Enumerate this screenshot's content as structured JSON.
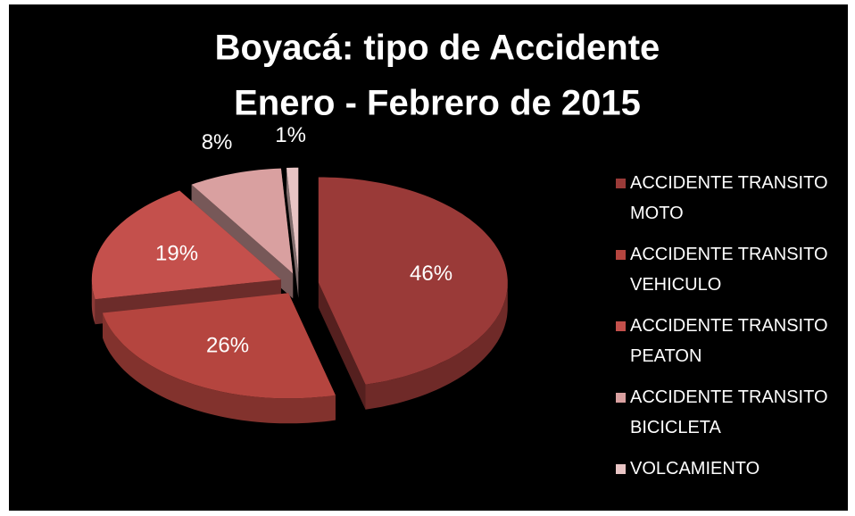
{
  "chart_data": {
    "type": "pie",
    "title": "Boyacá: tipo de Accidente",
    "subtitle": "Enero - Febrero de 2015",
    "categories": [
      "ACCIDENTE TRANSITO MOTO",
      "ACCIDENTE TRANSITO VEHICULO",
      "ACCIDENTE TRANSITO PEATON",
      "ACCIDENTE TRANSITO BICICLETA",
      "VOLCAMIENTO"
    ],
    "values": [
      46,
      26,
      19,
      8,
      1
    ],
    "value_labels": [
      "46%",
      "26%",
      "19%",
      "8%",
      "1%"
    ],
    "colors": [
      "#9a3a38",
      "#b5453f",
      "#c4504c",
      "#d9a0a0",
      "#e8c4c4"
    ],
    "legend": "right"
  }
}
